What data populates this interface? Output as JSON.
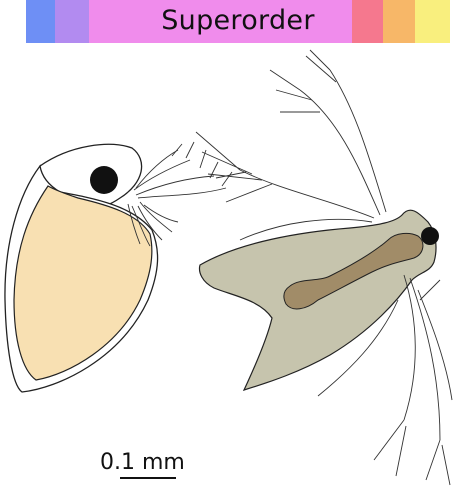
{
  "header": {
    "rank_label": "Superorder",
    "segments": [
      {
        "name": "blue",
        "color": "#6e8ff5"
      },
      {
        "name": "violet",
        "color": "#b28bf0"
      },
      {
        "name": "magenta",
        "color": "#f08cec"
      },
      {
        "name": "red",
        "color": "#f5788e"
      },
      {
        "name": "orange",
        "color": "#f7b768"
      },
      {
        "name": "yellow",
        "color": "#f9ef7e"
      }
    ]
  },
  "scale_bar": {
    "label": "0.1 mm"
  },
  "colors": {
    "carapace_left": "#ffffff",
    "valve_fill": "#f8e0b2",
    "eye": "#111111",
    "body_right": "#c6c4ad",
    "gut": "#a18c68",
    "outline": "#222222"
  },
  "organisms": [
    {
      "name": "water-flea",
      "color_key": "valve_fill"
    },
    {
      "name": "anostracan-larva",
      "color_key": "body_right"
    }
  ]
}
